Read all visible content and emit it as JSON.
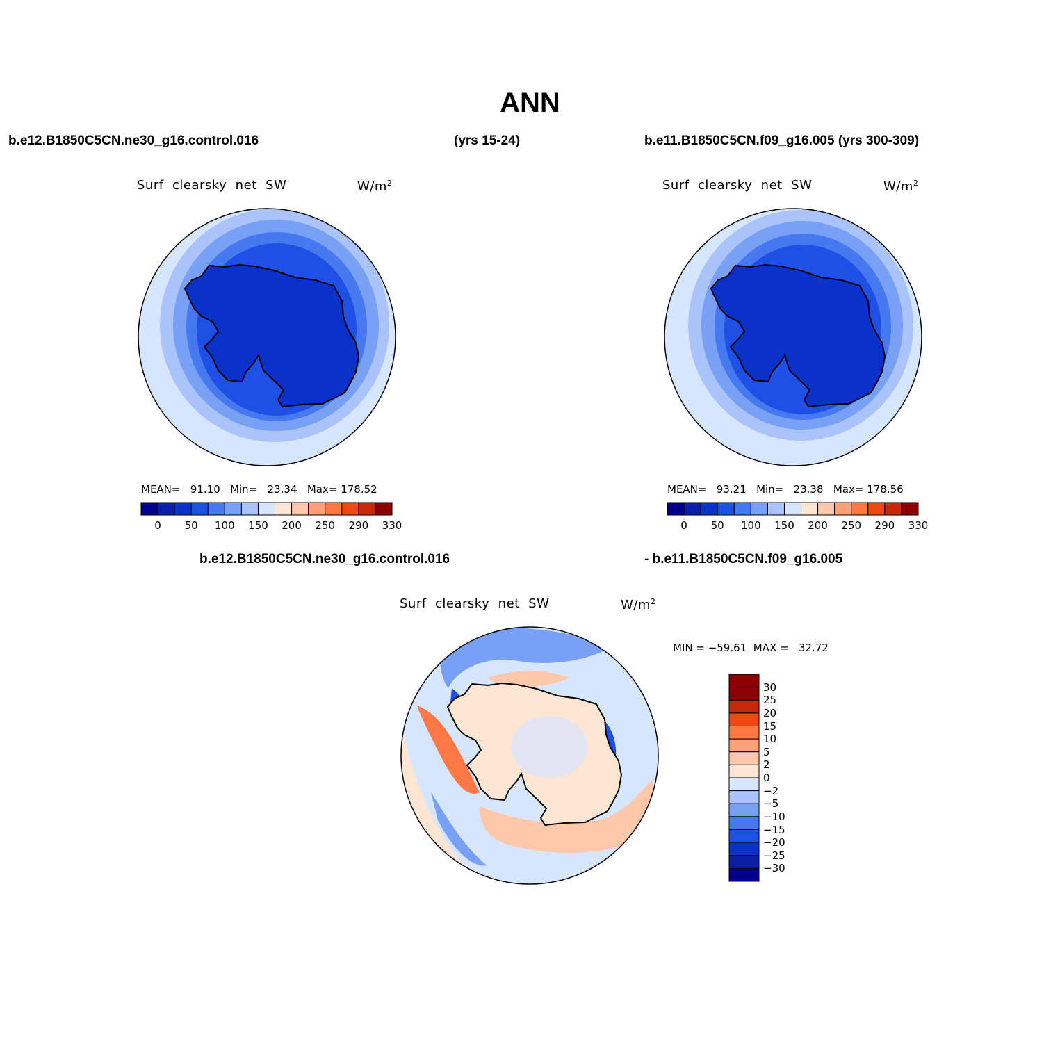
{
  "title": "ANN",
  "header": {
    "case1": "b.e12.B1850C5CN.ne30_g16.control.016",
    "case1_years": "(yrs 15-24)",
    "case2": "b.e11.B1850C5CN.f09_g16.005 (yrs 300-309)",
    "diff_case1": "b.e12.B1850C5CN.ne30_g16.control.016",
    "diff_case2": "- b.e11.B1850C5CN.f09_g16.005"
  },
  "panels": {
    "left": {
      "variable": "Surf  clearsky  net  SW",
      "units": "W/m",
      "units_exp": "2",
      "stats": {
        "mean_label": "MEAN=",
        "mean": "91.10",
        "min_label": "Min=",
        "min": "23.34",
        "max_label": "Max=",
        "max": "178.52"
      }
    },
    "right": {
      "variable": "Surf  clearsky  net  SW",
      "units": "W/m",
      "units_exp": "2",
      "stats": {
        "mean_label": "MEAN=",
        "mean": "93.21",
        "min_label": "Min=",
        "min": "23.38",
        "max_label": "Max=",
        "max": "178.56"
      }
    },
    "diff": {
      "variable": "Surf  clearsky  net  SW",
      "units": "W/m",
      "units_exp": "2",
      "minmax": "MIN = −59.61  MAX =   32.72"
    }
  },
  "colorbar_abs": {
    "colors": [
      "#00008b",
      "#0a1ea8",
      "#0a32c8",
      "#1e50e6",
      "#4678f0",
      "#78a0f5",
      "#aac3fa",
      "#d7e6ff",
      "#ffe6d2",
      "#ffc8aa",
      "#ffa078",
      "#ff7846",
      "#f04614",
      "#c8280a",
      "#8b0000"
    ],
    "labels": [
      "0",
      "50",
      "100",
      "150",
      "200",
      "250",
      "290",
      "330"
    ]
  },
  "colorbar_diff": {
    "colors": [
      "#00008b",
      "#0a1ea8",
      "#0a32c8",
      "#1e50e6",
      "#4678f0",
      "#78a0f5",
      "#aac3fa",
      "#d7e6ff",
      "#ffe6d2",
      "#ffc8aa",
      "#ffa078",
      "#ff7846",
      "#f04614",
      "#c8280a",
      "#8b0000",
      "#8b0000"
    ],
    "labels": [
      "30",
      "25",
      "20",
      "15",
      "10",
      "5",
      "2",
      "0",
      "−2",
      "−5",
      "−10",
      "−15",
      "−20",
      "−25",
      "−30"
    ]
  },
  "map_colors": {
    "ocean_far": "#d7e6ff",
    "ocean_mid": "#aac3fa",
    "ocean_near": "#78a0f5",
    "sea_ice": "#4678f0",
    "ice_edge": "#1e50e6",
    "continent": "#0a32c8",
    "diff_pos_light": "#ffe6d2",
    "diff_pos": "#ffc8aa",
    "diff_pos_strong": "#ff7846",
    "diff_neg_light": "#d7e6ff",
    "diff_neg": "#78a0f5",
    "diff_neg_strong": "#1e50e6"
  }
}
